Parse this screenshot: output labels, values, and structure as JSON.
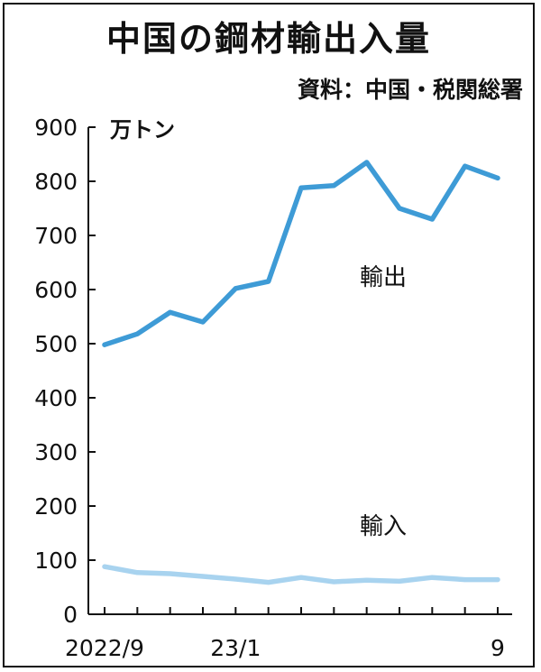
{
  "chart_data": {
    "type": "line",
    "title": "中国の鋼材輸出入量",
    "source": "資料：中国・税関総署",
    "ylabel": "万トン",
    "ylim": [
      0,
      900
    ],
    "yticks": [
      0,
      100,
      200,
      300,
      400,
      500,
      600,
      700,
      800,
      900
    ],
    "x": [
      "2022/9",
      "2022/10",
      "2022/11",
      "2022/12",
      "2023/1",
      "2023/2",
      "2023/3",
      "2023/4",
      "2023/5",
      "2023/6",
      "2023/7",
      "2023/8",
      "2023/9"
    ],
    "xtick_labels": [
      {
        "index": 0,
        "label": "2022/9"
      },
      {
        "index": 4,
        "label": "23/1"
      },
      {
        "index": 12,
        "label": "9"
      }
    ],
    "series": [
      {
        "name": "輸出",
        "color": "#3e9bd6",
        "values": [
          498,
          518,
          558,
          540,
          602,
          615,
          788,
          792,
          835,
          750,
          730,
          828,
          806
        ]
      },
      {
        "name": "輸入",
        "color": "#a8d3ef",
        "values": [
          88,
          77,
          75,
          70,
          65,
          59,
          68,
          60,
          63,
          61,
          68,
          64,
          64
        ]
      }
    ],
    "grid": false,
    "legend": "inline labels"
  }
}
